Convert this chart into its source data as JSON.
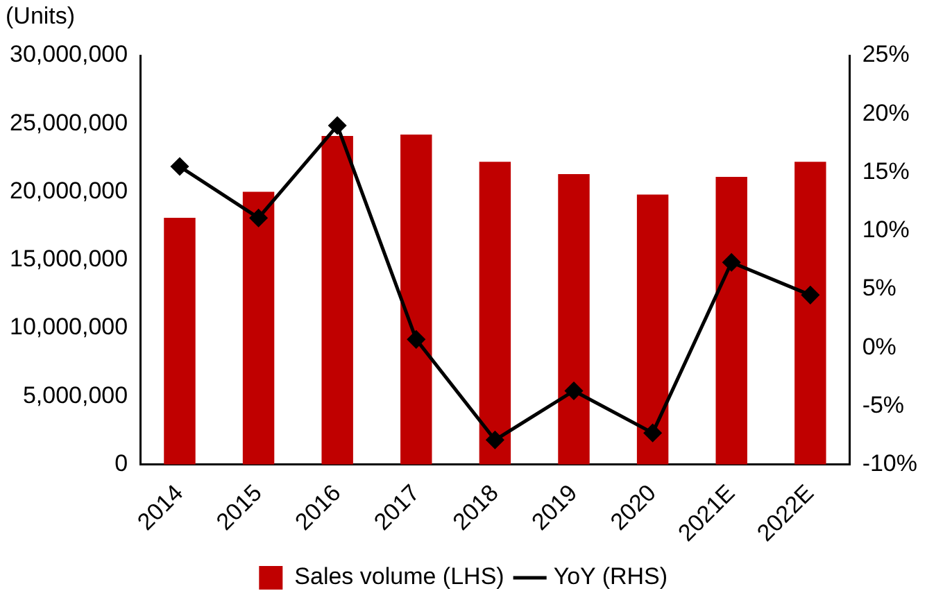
{
  "chart_data": {
    "type": "bar",
    "ylabel": "(Units)",
    "categories": [
      "2014",
      "2015",
      "2016",
      "2017",
      "2018",
      "2019",
      "2020",
      "2021E",
      "2022E"
    ],
    "series": [
      {
        "name": "Sales volume (LHS)",
        "color": "#c00000",
        "values": [
          18100000,
          20000000,
          24100000,
          24200000,
          22200000,
          21300000,
          19800000,
          21100000,
          22200000
        ]
      },
      {
        "name": "YoY (RHS)",
        "type": "line",
        "axis": "y2",
        "color": "#000000",
        "marker": "diamond",
        "values": [
          15.5,
          11.1,
          19.0,
          0.7,
          -7.9,
          -3.7,
          -7.3,
          7.3,
          4.5
        ]
      }
    ],
    "ylim": [
      0,
      30000000
    ],
    "yticks": [
      {
        "value": 0,
        "label": "0"
      },
      {
        "value": 5000000,
        "label": "5,000,000"
      },
      {
        "value": 10000000,
        "label": "10,000,000"
      },
      {
        "value": 15000000,
        "label": "15,000,000"
      },
      {
        "value": 20000000,
        "label": "20,000,000"
      },
      {
        "value": 25000000,
        "label": "25,000,000"
      },
      {
        "value": 30000000,
        "label": "30,000,000"
      }
    ],
    "y2lim": [
      -10,
      25
    ],
    "y2ticks": [
      {
        "value": -10,
        "label": "-10%"
      },
      {
        "value": -5,
        "label": "-5%"
      },
      {
        "value": 0,
        "label": "0%"
      },
      {
        "value": 5,
        "label": "5%"
      },
      {
        "value": 10,
        "label": "10%"
      },
      {
        "value": 15,
        "label": "15%"
      },
      {
        "value": 20,
        "label": "20%"
      },
      {
        "value": 25,
        "label": "25%"
      }
    ],
    "grid": false,
    "legend": "bottom"
  }
}
